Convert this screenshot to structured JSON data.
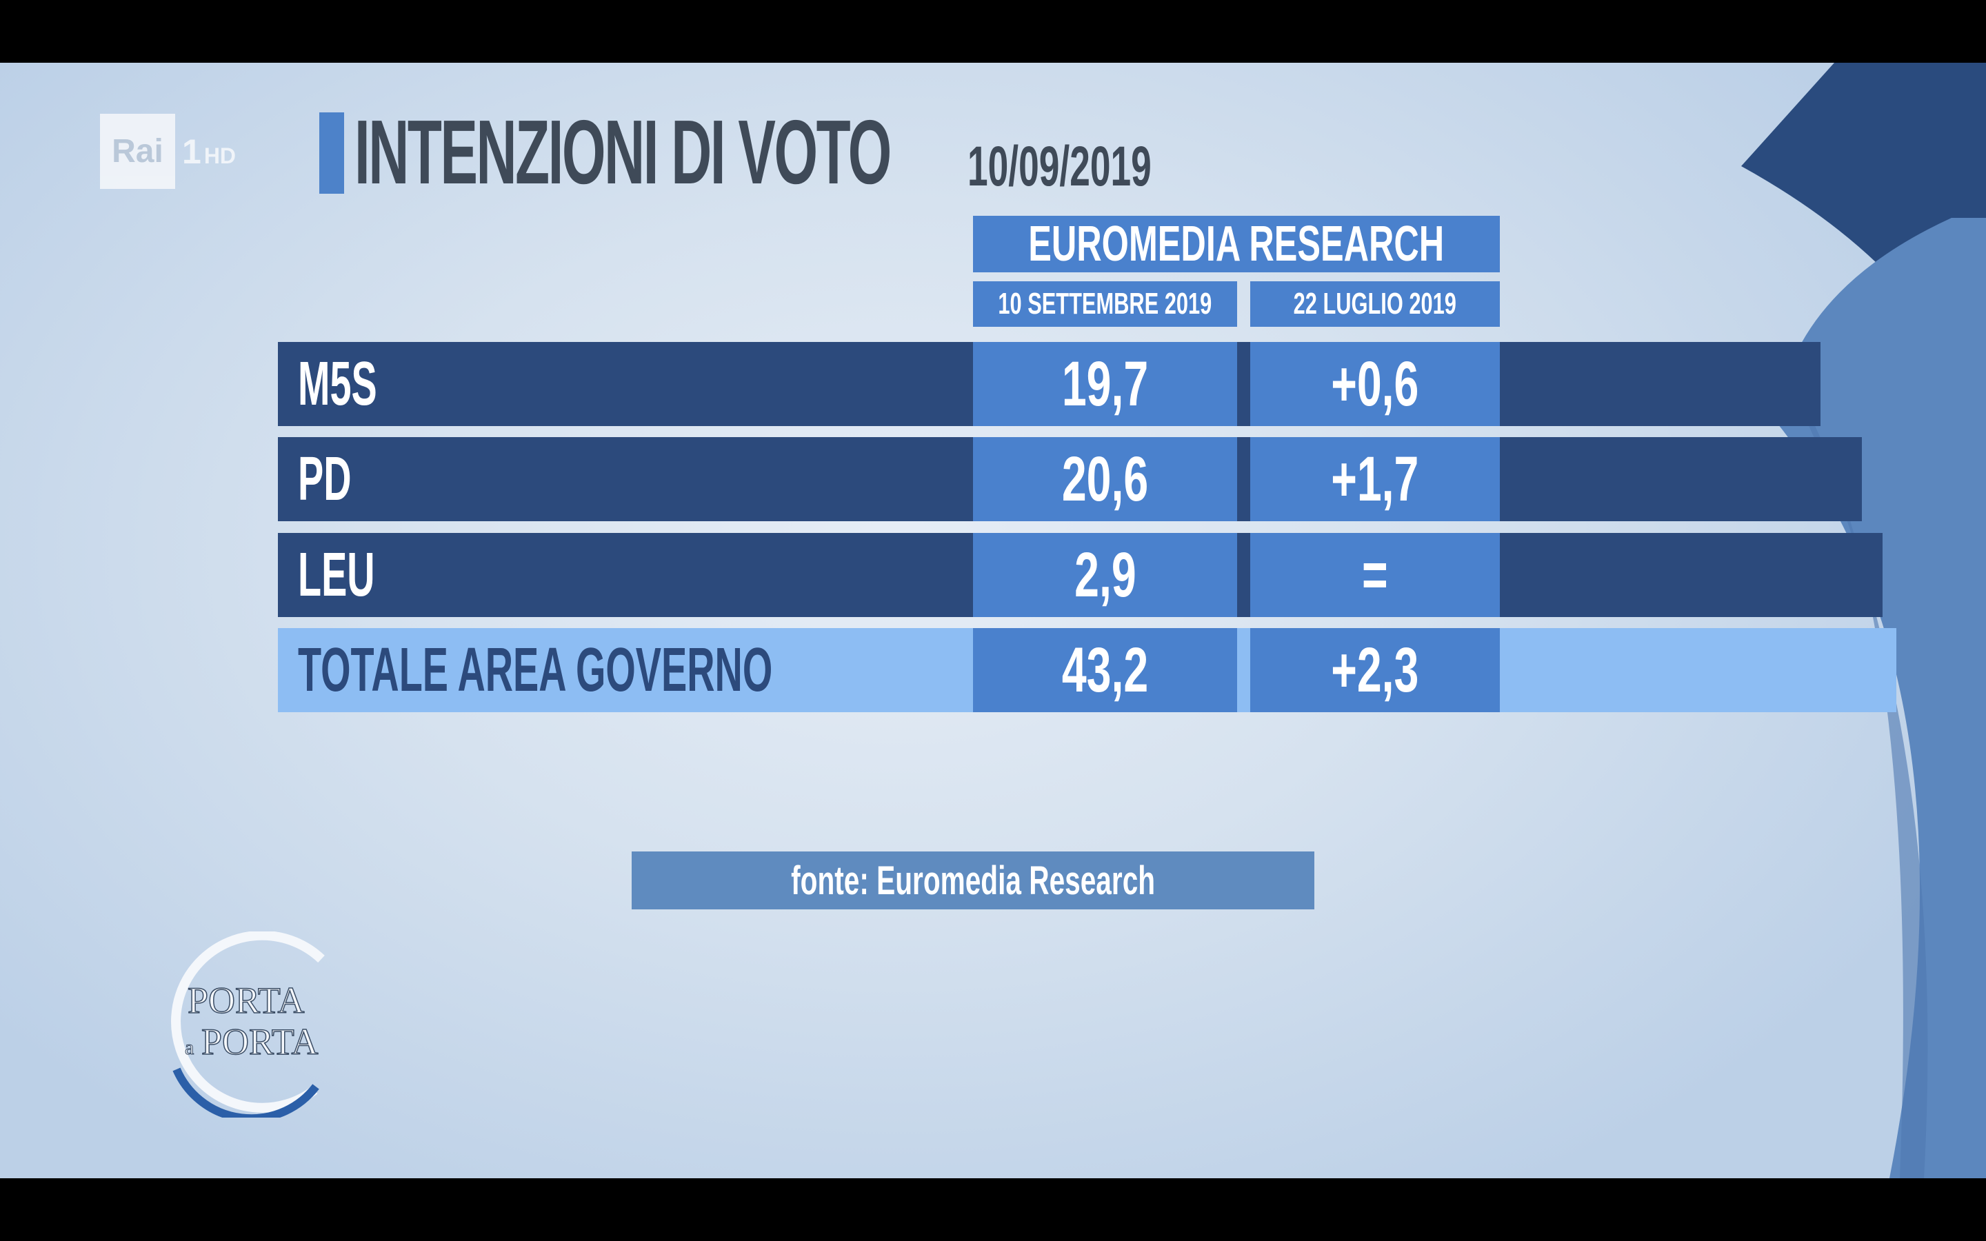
{
  "channel": {
    "brand": "Rai",
    "number": "1",
    "quality": "HD"
  },
  "title": "INTENZIONI DI VOTO",
  "date": "10/09/2019",
  "show_logo": {
    "line1": "PORTA",
    "connector": "a",
    "line2": "PORTA"
  },
  "source_note": "fonte: Euromedia Research",
  "colors": {
    "row_dark": "#2c4a7c",
    "row_light": "#8dbdf3",
    "cell": "#4a81cd",
    "accent": "#4d82c9",
    "title": "#3f4a58"
  },
  "chart_data": {
    "type": "table",
    "title": "EUROMEDIA RESEARCH",
    "columns": [
      "10 SETTEMBRE 2019",
      "22 LUGLIO 2019"
    ],
    "rows": [
      {
        "label": "M5S",
        "values": [
          "19,7",
          "+0,6"
        ]
      },
      {
        "label": "PD",
        "values": [
          "20,6",
          "+1,7"
        ]
      },
      {
        "label": "LEU",
        "values": [
          "2,9",
          "="
        ]
      },
      {
        "label": "TOTALE AREA GOVERNO",
        "values": [
          "43,2",
          "+2,3"
        ]
      }
    ]
  }
}
